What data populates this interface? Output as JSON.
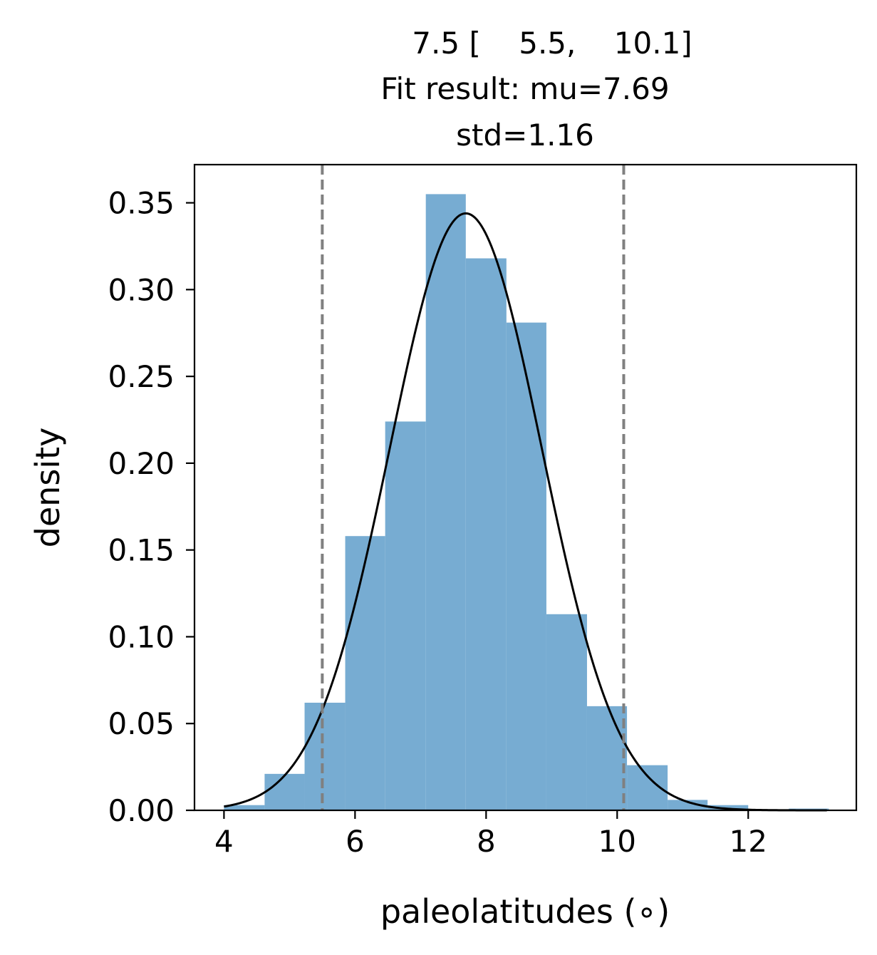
{
  "chart_data": {
    "type": "bar",
    "title_lines": [
      "7.5 [    5.5,    10.1]",
      "Fit result: mu=7.69",
      "std=1.16"
    ],
    "xlabel": "paleolatitudes (∘)",
    "ylabel": "density",
    "xlim": [
      3.55,
      13.65
    ],
    "ylim": [
      0,
      0.372
    ],
    "xticks": [
      4,
      6,
      8,
      10,
      12
    ],
    "xtick_labels": [
      "4",
      "6",
      "8",
      "10",
      "12"
    ],
    "yticks": [
      0,
      0.05,
      0.1,
      0.15,
      0.2,
      0.25,
      0.3,
      0.35
    ],
    "ytick_labels": [
      "0.00",
      "0.05",
      "0.10",
      "0.15",
      "0.20",
      "0.25",
      "0.30",
      "0.35"
    ],
    "bins": [
      {
        "x0": 4.0,
        "x1": 4.62,
        "density": 0.003
      },
      {
        "x0": 4.62,
        "x1": 5.23,
        "density": 0.021
      },
      {
        "x0": 5.23,
        "x1": 5.85,
        "density": 0.062
      },
      {
        "x0": 5.85,
        "x1": 6.46,
        "density": 0.158
      },
      {
        "x0": 6.46,
        "x1": 7.08,
        "density": 0.224
      },
      {
        "x0": 7.08,
        "x1": 7.69,
        "density": 0.355
      },
      {
        "x0": 7.69,
        "x1": 8.31,
        "density": 0.318
      },
      {
        "x0": 8.31,
        "x1": 8.92,
        "density": 0.281
      },
      {
        "x0": 8.92,
        "x1": 9.54,
        "density": 0.113
      },
      {
        "x0": 9.54,
        "x1": 10.15,
        "density": 0.06
      },
      {
        "x0": 10.15,
        "x1": 10.77,
        "density": 0.026
      },
      {
        "x0": 10.77,
        "x1": 11.38,
        "density": 0.006
      },
      {
        "x0": 11.38,
        "x1": 12.0,
        "density": 0.003
      },
      {
        "x0": 12.0,
        "x1": 12.62,
        "density": 0.0
      },
      {
        "x0": 12.62,
        "x1": 13.23,
        "density": 0.001
      }
    ],
    "fit": {
      "mu": 7.69,
      "std": 1.16,
      "x_range": [
        4.0,
        13.2
      ]
    },
    "vlines": [
      5.5,
      10.1
    ],
    "bar_color": "#77acd2",
    "fit_line_color": "#000000",
    "vline_color": "#808080",
    "grid": false,
    "legend": "none"
  }
}
